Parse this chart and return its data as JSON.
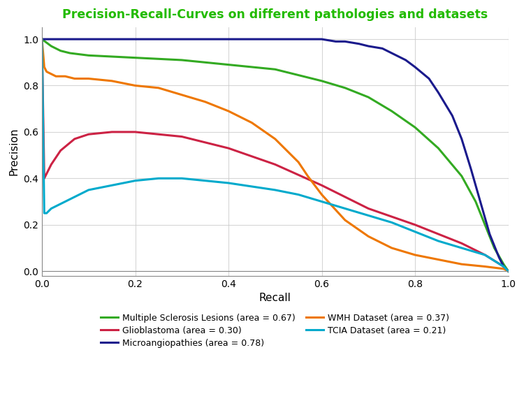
{
  "title": "Precision-Recall-Curves on different pathologies and datasets",
  "title_color": "#22bb00",
  "xlabel": "Recall",
  "ylabel": "Precision",
  "xlim": [
    0,
    1.0
  ],
  "ylim": [
    -0.02,
    1.05
  ],
  "background_color": "#ffffff",
  "grid_color": "#cccccc",
  "curves": {
    "ms_lesions": {
      "label": "Multiple Sclerosis Lesions (area = 0.67)",
      "color": "#33aa22",
      "linewidth": 2.2,
      "recall": [
        0.0,
        0.02,
        0.04,
        0.06,
        0.1,
        0.2,
        0.3,
        0.4,
        0.5,
        0.6,
        0.65,
        0.7,
        0.75,
        0.8,
        0.85,
        0.9,
        0.93,
        0.95,
        0.97,
        0.99,
        1.0
      ],
      "precision": [
        1.0,
        0.97,
        0.95,
        0.94,
        0.93,
        0.92,
        0.91,
        0.89,
        0.87,
        0.82,
        0.79,
        0.75,
        0.69,
        0.62,
        0.53,
        0.41,
        0.3,
        0.2,
        0.1,
        0.03,
        0.0
      ]
    },
    "glioblastoma": {
      "label": "Glioblastoma (area = 0.30)",
      "color": "#cc2244",
      "linewidth": 2.2,
      "recall": [
        0.0,
        0.005,
        0.01,
        0.02,
        0.04,
        0.07,
        0.1,
        0.15,
        0.2,
        0.3,
        0.4,
        0.5,
        0.6,
        0.65,
        0.7,
        0.8,
        0.9,
        0.95,
        0.99,
        1.0
      ],
      "precision": [
        1.0,
        0.4,
        0.42,
        0.46,
        0.52,
        0.57,
        0.59,
        0.6,
        0.6,
        0.58,
        0.53,
        0.46,
        0.37,
        0.32,
        0.27,
        0.2,
        0.12,
        0.07,
        0.02,
        0.0
      ]
    },
    "microangiopathies": {
      "label": "Microangiopathies (area = 0.78)",
      "color": "#1a1a8c",
      "linewidth": 2.2,
      "recall": [
        0.0,
        0.05,
        0.1,
        0.2,
        0.3,
        0.4,
        0.5,
        0.55,
        0.6,
        0.63,
        0.65,
        0.68,
        0.7,
        0.73,
        0.75,
        0.78,
        0.8,
        0.83,
        0.85,
        0.88,
        0.9,
        0.92,
        0.94,
        0.96,
        0.98,
        0.99,
        1.0
      ],
      "precision": [
        1.0,
        1.0,
        1.0,
        1.0,
        1.0,
        1.0,
        1.0,
        1.0,
        1.0,
        0.99,
        0.99,
        0.98,
        0.97,
        0.96,
        0.94,
        0.91,
        0.88,
        0.83,
        0.77,
        0.67,
        0.57,
        0.44,
        0.3,
        0.16,
        0.06,
        0.02,
        0.0
      ]
    },
    "wmh_dataset": {
      "label": "WMH Dataset (area = 0.37)",
      "color": "#ee7700",
      "linewidth": 2.2,
      "recall": [
        0.0,
        0.005,
        0.01,
        0.02,
        0.03,
        0.05,
        0.07,
        0.1,
        0.15,
        0.2,
        0.25,
        0.3,
        0.35,
        0.4,
        0.45,
        0.5,
        0.52,
        0.55,
        0.57,
        0.6,
        0.65,
        0.7,
        0.75,
        0.8,
        0.85,
        0.9,
        0.95,
        0.99,
        1.0
      ],
      "precision": [
        1.0,
        0.88,
        0.86,
        0.85,
        0.84,
        0.84,
        0.83,
        0.83,
        0.82,
        0.8,
        0.79,
        0.76,
        0.73,
        0.69,
        0.64,
        0.57,
        0.53,
        0.47,
        0.41,
        0.33,
        0.22,
        0.15,
        0.1,
        0.07,
        0.05,
        0.03,
        0.02,
        0.01,
        0.0
      ]
    },
    "tcia_dataset": {
      "label": "TCIA Dataset (area = 0.21)",
      "color": "#00aacc",
      "linewidth": 2.2,
      "recall": [
        0.0,
        0.005,
        0.01,
        0.015,
        0.02,
        0.03,
        0.05,
        0.08,
        0.1,
        0.15,
        0.2,
        0.25,
        0.3,
        0.4,
        0.5,
        0.55,
        0.6,
        0.65,
        0.7,
        0.75,
        0.8,
        0.85,
        0.9,
        0.95,
        0.99,
        1.0
      ],
      "precision": [
        1.0,
        0.25,
        0.25,
        0.26,
        0.27,
        0.28,
        0.3,
        0.33,
        0.35,
        0.37,
        0.39,
        0.4,
        0.4,
        0.38,
        0.35,
        0.33,
        0.3,
        0.27,
        0.24,
        0.21,
        0.17,
        0.13,
        0.1,
        0.07,
        0.02,
        0.0
      ]
    }
  },
  "legend_order": [
    "ms_lesions",
    "glioblastoma",
    "microangiopathies",
    "wmh_dataset",
    "tcia_dataset"
  ],
  "legend_ncol": 2,
  "xticks": [
    0,
    0.2,
    0.4,
    0.6,
    0.8,
    1.0
  ],
  "yticks": [
    0.0,
    0.2,
    0.4,
    0.6,
    0.8,
    1.0
  ]
}
